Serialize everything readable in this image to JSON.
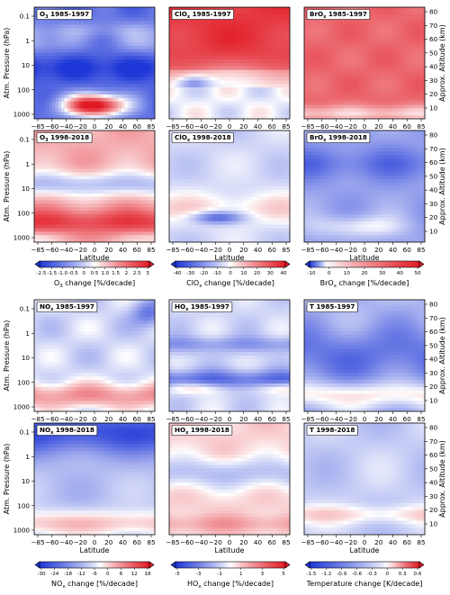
{
  "figure": {
    "y_left_label": "Atm. Pressure (hPa)",
    "y_right_label": "Approx. Altitude (km)",
    "x_label": "Latitude"
  },
  "chart_data": {
    "type": "heatmap",
    "x_ticks": [
      "−85",
      "−60",
      "−40",
      "−20",
      "0",
      "20",
      "40",
      "60",
      "85"
    ],
    "pressure_ticks": [
      "0.1",
      "1",
      "10",
      "100",
      "1000"
    ],
    "altitude_ticks": [
      "80",
      "70",
      "60",
      "50",
      "40",
      "30",
      "20",
      "10"
    ],
    "panels": [
      {
        "species": "O",
        "sub": "3",
        "period": "1985-1997",
        "field": "o3a"
      },
      {
        "species": "ClO",
        "sub": "x",
        "period": "1985-1997",
        "field": "cloa"
      },
      {
        "species": "BrO",
        "sub": "x",
        "period": "1985-1997",
        "field": "broa"
      },
      {
        "species": "O",
        "sub": "3",
        "period": "1998-2018",
        "field": "o3b"
      },
      {
        "species": "ClO",
        "sub": "x",
        "period": "1998-2018",
        "field": "clob"
      },
      {
        "species": "BrO",
        "sub": "x",
        "period": "1998-2018",
        "field": "brob"
      },
      {
        "species": "NO",
        "sub": "x",
        "period": "1985-1997",
        "field": "noa"
      },
      {
        "species": "HO",
        "sub": "x",
        "period": "1985-1997",
        "field": "hoa"
      },
      {
        "species": "T",
        "sub": "",
        "period": "1985-1997",
        "field": "ta"
      },
      {
        "species": "NO",
        "sub": "x",
        "period": "1998-2018",
        "field": "nob"
      },
      {
        "species": "HO",
        "sub": "x",
        "period": "1998-2018",
        "field": "hob"
      },
      {
        "species": "T",
        "sub": "",
        "period": "1998-2018",
        "field": "tb"
      }
    ],
    "colorbars": [
      {
        "label_pre": "O",
        "label_sub": "3",
        "label_post": " change [%/decade]",
        "ticks": [
          "-2.5",
          "-1.5",
          "-1.0",
          "-0.5",
          "0",
          "0.5",
          "1.0",
          "1.5",
          "2",
          "2.5",
          "3"
        ],
        "vmin": -3,
        "vmax": 3
      },
      {
        "label_pre": "ClO",
        "label_sub": "x",
        "label_post": " change [%/decade]",
        "ticks": [
          "-40",
          "-30",
          "-20",
          "-10",
          "0",
          "10",
          "20",
          "30",
          "40"
        ],
        "vmin": -50,
        "vmax": 50
      },
      {
        "label_pre": "BrO",
        "label_sub": "x",
        "label_post": " change [%/decade]",
        "ticks": [
          "-10",
          "0",
          "10",
          "20",
          "30",
          "40",
          "50"
        ],
        "vmin": -10,
        "vmax": 55
      },
      {
        "label_pre": "NO",
        "label_sub": "x",
        "label_post": " change [%/decade]",
        "ticks": [
          "-30",
          "-24",
          "-18",
          "-12",
          "-6",
          "0",
          "6",
          "12",
          "18"
        ],
        "vmin": -30,
        "vmax": 24
      },
      {
        "label_pre": "HO",
        "label_sub": "x",
        "label_post": " change [%/decade]",
        "ticks": [
          "-5",
          "-3",
          "-1",
          "1",
          "3",
          "5"
        ],
        "vmin": -6,
        "vmax": 6
      },
      {
        "label_pre": "Temperature change [K/decade]",
        "label_sub": "",
        "label_post": "",
        "ticks": [
          "-1.5",
          "-1.2",
          "-0.9",
          "-0.6",
          "-0.3",
          "0",
          "0.3",
          "0.6"
        ],
        "vmin": -1.5,
        "vmax": 0.6
      }
    ],
    "colors": {
      "negative": "#2a4fd8",
      "neutral": "#ffffff",
      "positive": "#e8212a"
    }
  }
}
